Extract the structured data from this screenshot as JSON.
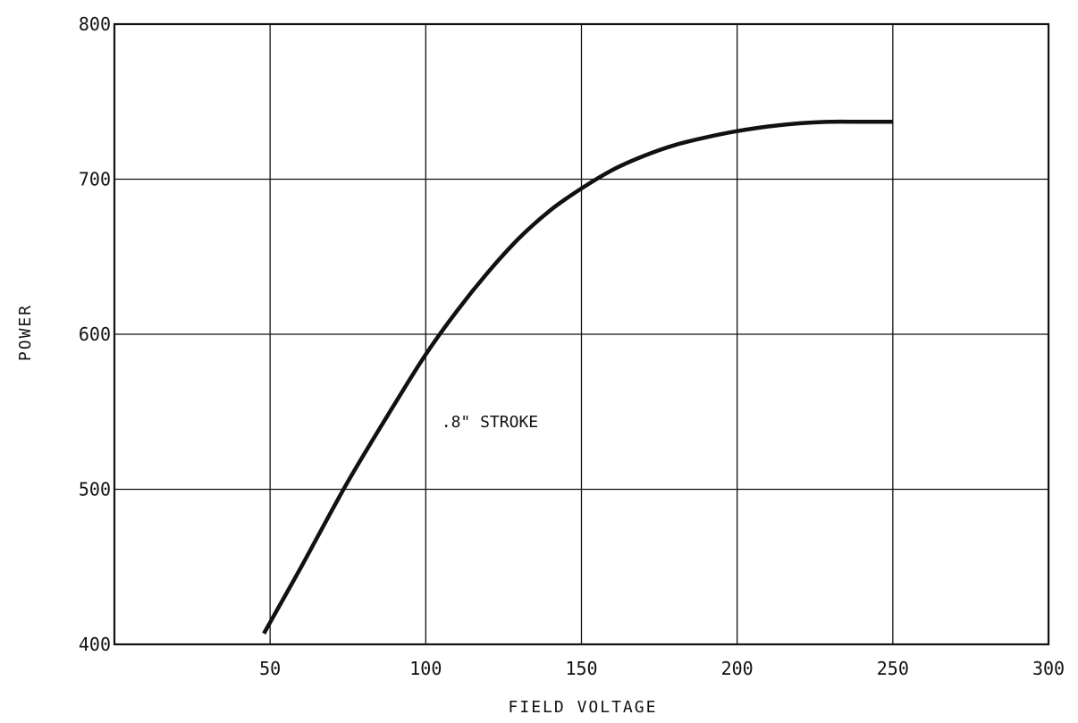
{
  "chart_data": {
    "type": "line",
    "title": "",
    "xlabel": "FIELD VOLTAGE",
    "ylabel": "POWER",
    "xlim": [
      0,
      300
    ],
    "ylim": [
      400,
      800
    ],
    "xticks": [
      50,
      100,
      150,
      200,
      250,
      300
    ],
    "yticks": [
      400,
      500,
      600,
      700,
      800
    ],
    "grid": true,
    "series": [
      {
        "name": ".8\" STROKE",
        "x": [
          48,
          60,
          75,
          90,
          100,
          110,
          120,
          130,
          140,
          150,
          160,
          170,
          180,
          190,
          200,
          210,
          220,
          230,
          240,
          250
        ],
        "y": [
          407,
          450,
          505,
          555,
          587,
          615,
          640,
          662,
          680,
          694,
          706,
          715,
          722,
          727,
          731,
          734,
          736,
          737,
          737,
          737
        ]
      }
    ],
    "annotations": [
      {
        "text": ".8\" STROKE",
        "x": 105,
        "y": 550
      }
    ]
  }
}
